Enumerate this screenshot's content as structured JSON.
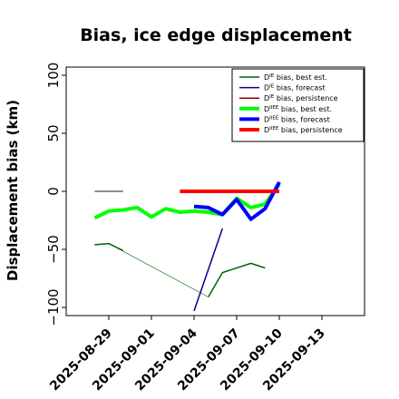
{
  "chart_data": {
    "type": "line",
    "title": "Bias, ice edge displacement",
    "xlabel": "",
    "ylabel": "Displacement bias (km)",
    "x_range": [
      "2025-08-26",
      "2025-09-16"
    ],
    "ylim": [
      -107,
      107
    ],
    "y_ticks": [
      -100,
      -50,
      0,
      50,
      100
    ],
    "y_tick_labels": [
      "−100",
      "−50",
      "0",
      "50",
      "100"
    ],
    "x_ticks": [
      "2025-08-29",
      "2025-09-01",
      "2025-09-04",
      "2025-09-07",
      "2025-09-10",
      "2025-09-13"
    ],
    "x_tick_labels": [
      "2025-08-29",
      "2025-09-01",
      "2025-09-04",
      "2025-09-07",
      "2025-09-10",
      "2025-09-13"
    ],
    "x_tick_colors": [
      "#000000",
      "#000000",
      "#228b22",
      "#000000",
      "#000000",
      "#000000"
    ],
    "grid": false,
    "legend_position": "top-right",
    "legend": [
      {
        "label": "D^IE bias, best est.",
        "color": "#006400",
        "width": "thin"
      },
      {
        "label": "D^IE bias, forecast",
        "color": "#00008b",
        "width": "thin"
      },
      {
        "label": "D^IE bias, persistence",
        "color": "#8b0000",
        "width": "thin"
      },
      {
        "label": "D^IIEE bias, best est.",
        "color": "#00ff00",
        "width": "thick"
      },
      {
        "label": "D^IIEE bias, forecast",
        "color": "#0000ff",
        "width": "thick"
      },
      {
        "label": "D^IIEE bias, persistence",
        "color": "#ff0000",
        "width": "thick"
      }
    ],
    "legend_text": [
      {
        "sup": "IE",
        "rest": " bias, best est."
      },
      {
        "sup": "IE",
        "rest": " bias, forecast"
      },
      {
        "sup": "IE",
        "rest": " bias, persistence"
      },
      {
        "sup": "IIEE",
        "rest": " bias, best est."
      },
      {
        "sup": "IIEE",
        "rest": " bias, forecast"
      },
      {
        "sup": "IIEE",
        "rest": " bias, persistence"
      }
    ],
    "legend_prefix": "D",
    "series": [
      {
        "key": "ie_best_est_thin_link",
        "color": "#006400",
        "width": "hairline",
        "points": [
          [
            "2025-08-29",
            -45
          ],
          [
            "2025-09-05",
            -91
          ]
        ]
      },
      {
        "key": "ie_best_est_segments",
        "color": "#006400",
        "width": "thin",
        "segments": [
          [
            [
              "2025-08-28",
              -46
            ],
            [
              "2025-08-29",
              -45
            ],
            [
              "2025-08-30",
              -51
            ]
          ],
          [
            [
              "2025-09-05",
              -91
            ],
            [
              "2025-09-06",
              -70
            ],
            [
              "2025-09-08",
              -62
            ],
            [
              "2025-09-09",
              -66
            ]
          ]
        ]
      },
      {
        "key": "ie_forecast",
        "color": "#00008b",
        "width": "thin",
        "points": [
          [
            "2025-09-04",
            -103
          ],
          [
            "2025-09-06",
            -32
          ]
        ]
      },
      {
        "key": "ie_persistence",
        "color": "#696969",
        "width": "thin",
        "points": [
          [
            "2025-08-28",
            0
          ],
          [
            "2025-08-30",
            0
          ]
        ]
      },
      {
        "key": "iiee_best_est",
        "color": "#00ff00",
        "width": "thick",
        "points": [
          [
            "2025-08-28",
            -23
          ],
          [
            "2025-08-29",
            -17
          ],
          [
            "2025-08-30",
            -16
          ],
          [
            "2025-08-31",
            -14
          ],
          [
            "2025-09-01",
            -22
          ],
          [
            "2025-09-02",
            -15
          ],
          [
            "2025-09-03",
            -18
          ],
          [
            "2025-09-04",
            -17
          ],
          [
            "2025-09-05",
            -18
          ],
          [
            "2025-09-06",
            -20
          ],
          [
            "2025-09-07",
            -6
          ],
          [
            "2025-09-08",
            -14
          ],
          [
            "2025-09-09",
            -11
          ],
          [
            "2025-09-10",
            6
          ]
        ]
      },
      {
        "key": "iiee_forecast",
        "color": "#0000ff",
        "width": "thick",
        "points": [
          [
            "2025-09-04",
            -13
          ],
          [
            "2025-09-05",
            -14
          ],
          [
            "2025-09-06",
            -20
          ],
          [
            "2025-09-07",
            -7
          ],
          [
            "2025-09-08",
            -24
          ],
          [
            "2025-09-09",
            -15
          ],
          [
            "2025-09-10",
            8
          ]
        ]
      },
      {
        "key": "iiee_persistence",
        "color": "#ff0000",
        "width": "thick",
        "points": [
          [
            "2025-09-03",
            0
          ],
          [
            "2025-09-10",
            0
          ]
        ]
      }
    ]
  }
}
